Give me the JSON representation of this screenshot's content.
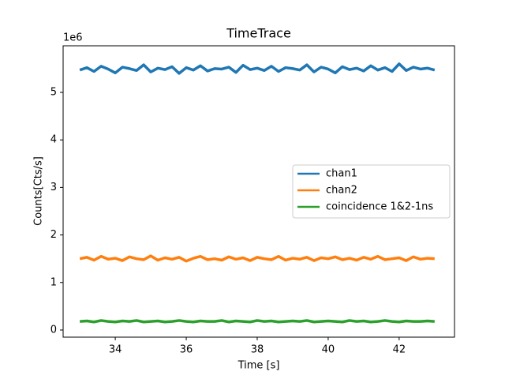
{
  "chart_data": {
    "type": "line",
    "title": "TimeTrace",
    "x_label": "Time [s]",
    "y_label": "Counts[Cts/s]",
    "y_offset_label": "1e6",
    "x": [
      33.0,
      33.2,
      33.4,
      33.6,
      33.8,
      34.0,
      34.2,
      34.4,
      34.6,
      34.8,
      35.0,
      35.2,
      35.4,
      35.6,
      35.8,
      36.0,
      36.2,
      36.4,
      36.6,
      36.8,
      37.0,
      37.2,
      37.4,
      37.6,
      37.8,
      38.0,
      38.2,
      38.4,
      38.6,
      38.8,
      39.0,
      39.2,
      39.4,
      39.6,
      39.8,
      40.0,
      40.2,
      40.4,
      40.6,
      40.8,
      41.0,
      41.2,
      41.4,
      41.6,
      41.8,
      42.0,
      42.2,
      42.4,
      42.6,
      42.8,
      43.0
    ],
    "series": [
      {
        "name": "chan1",
        "color": "#1f77b4",
        "values": [
          5.47,
          5.52,
          5.44,
          5.55,
          5.49,
          5.41,
          5.53,
          5.5,
          5.46,
          5.58,
          5.43,
          5.51,
          5.48,
          5.54,
          5.4,
          5.52,
          5.47,
          5.56,
          5.45,
          5.5,
          5.49,
          5.53,
          5.42,
          5.57,
          5.48,
          5.51,
          5.46,
          5.55,
          5.44,
          5.52,
          5.5,
          5.47,
          5.58,
          5.43,
          5.53,
          5.49,
          5.41,
          5.54,
          5.48,
          5.51,
          5.45,
          5.56,
          5.47,
          5.52,
          5.44,
          5.6,
          5.46,
          5.53,
          5.49,
          5.51,
          5.47
        ]
      },
      {
        "name": "chan2",
        "color": "#ff7f0e",
        "values": [
          1.5,
          1.53,
          1.47,
          1.55,
          1.49,
          1.51,
          1.46,
          1.54,
          1.5,
          1.48,
          1.56,
          1.47,
          1.52,
          1.49,
          1.53,
          1.45,
          1.51,
          1.55,
          1.48,
          1.5,
          1.47,
          1.54,
          1.49,
          1.52,
          1.46,
          1.53,
          1.5,
          1.48,
          1.55,
          1.47,
          1.51,
          1.49,
          1.53,
          1.46,
          1.52,
          1.5,
          1.54,
          1.48,
          1.51,
          1.47,
          1.53,
          1.49,
          1.55,
          1.48,
          1.5,
          1.52,
          1.46,
          1.54,
          1.49,
          1.51,
          1.5
        ]
      },
      {
        "name": "coincidence 1&2-1ns",
        "color": "#2ca02c",
        "values": [
          0.18,
          0.19,
          0.17,
          0.2,
          0.18,
          0.17,
          0.19,
          0.18,
          0.2,
          0.17,
          0.18,
          0.19,
          0.17,
          0.18,
          0.2,
          0.18,
          0.17,
          0.19,
          0.18,
          0.18,
          0.2,
          0.17,
          0.19,
          0.18,
          0.17,
          0.2,
          0.18,
          0.19,
          0.17,
          0.18,
          0.19,
          0.18,
          0.2,
          0.17,
          0.18,
          0.19,
          0.18,
          0.17,
          0.2,
          0.18,
          0.19,
          0.17,
          0.18,
          0.2,
          0.18,
          0.17,
          0.19,
          0.18,
          0.18,
          0.19,
          0.18
        ]
      }
    ],
    "xlim": [
      32.53,
      43.56
    ],
    "ylim": [
      -0.15,
      5.98
    ],
    "xticks": [
      34,
      36,
      38,
      40,
      42
    ],
    "yticks": [
      0,
      1,
      2,
      3,
      4,
      5
    ],
    "legend": "center right"
  }
}
